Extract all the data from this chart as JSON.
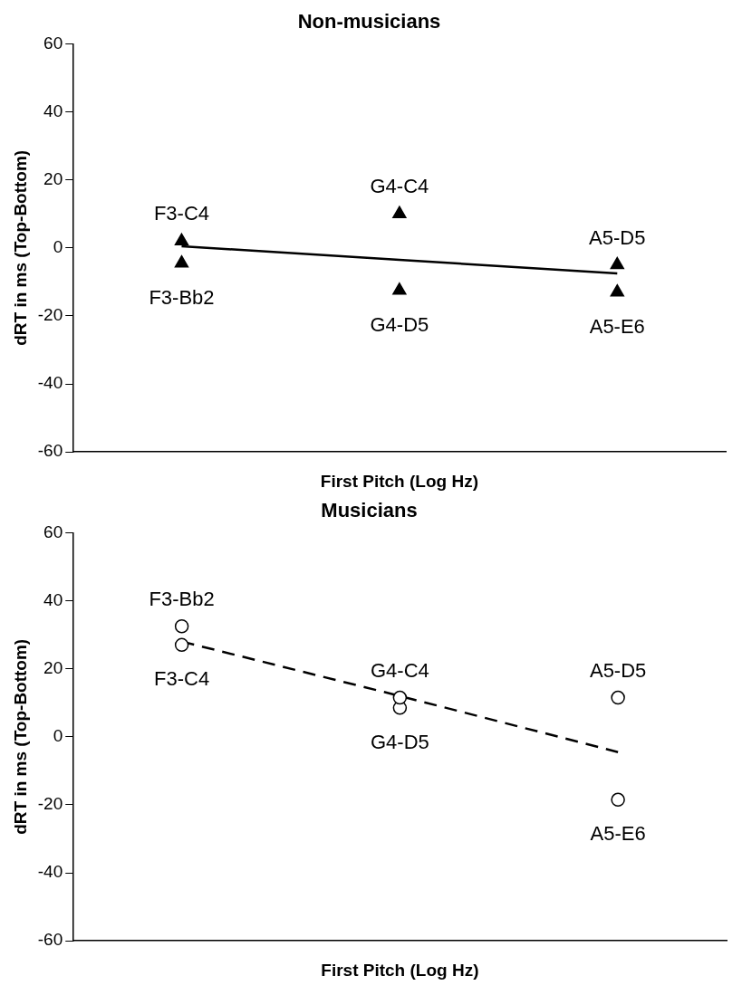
{
  "chart_data": [
    {
      "type": "scatter",
      "title": "Non-musicians",
      "xlabel": "First Pitch (Log Hz)",
      "ylabel": "dRT in ms (Top-Bottom)",
      "categories": [
        null,
        null,
        null
      ],
      "ylim": [
        -60,
        60
      ],
      "yticks": [
        -60,
        -40,
        -20,
        0,
        20,
        40,
        60
      ],
      "grid": false,
      "legend": false,
      "tick_labels": "y",
      "marker": "triangle",
      "series": [
        {
          "color": "#000000",
          "values": [
            2,
            10,
            -5
          ],
          "value_labels": [
            "F3-C4",
            "G4-C4",
            "A5-D5"
          ]
        },
        {
          "color": "#000000",
          "values": [
            -4.5,
            -12.5,
            -13
          ],
          "value_labels": [
            "F3-Bb2",
            "G4-D5",
            "A5-E6"
          ]
        },
        {
          "type": "line",
          "color": "#000000",
          "values": [
            0.5,
            -3.5,
            -7.5
          ],
          "line_style": "solid",
          "marker": "none"
        }
      ]
    },
    {
      "type": "scatter",
      "title": "Musicians",
      "xlabel": "First Pitch (Log Hz)",
      "ylabel": "dRT in ms (Top-Bottom)",
      "categories": [
        null,
        null,
        null
      ],
      "ylim": [
        -60,
        60
      ],
      "yticks": [
        -60,
        -40,
        -20,
        0,
        20,
        40,
        60
      ],
      "grid": false,
      "legend": false,
      "tick_labels": "y",
      "marker": "circle",
      "series": [
        {
          "color": "#000000",
          "values": [
            32.5,
            11.5,
            11.5
          ],
          "value_labels": [
            "F3-Bb2",
            "G4-C4",
            "A5-D5"
          ]
        },
        {
          "color": "#000000",
          "values": [
            27,
            8.5,
            -18.5
          ],
          "value_labels": [
            "F3-C4",
            "G4-D5",
            "A5-E6"
          ]
        },
        {
          "type": "line",
          "color": "#000000",
          "values": [
            28,
            12,
            -4.5
          ],
          "line_style": "dashed",
          "marker": "none"
        }
      ]
    }
  ]
}
